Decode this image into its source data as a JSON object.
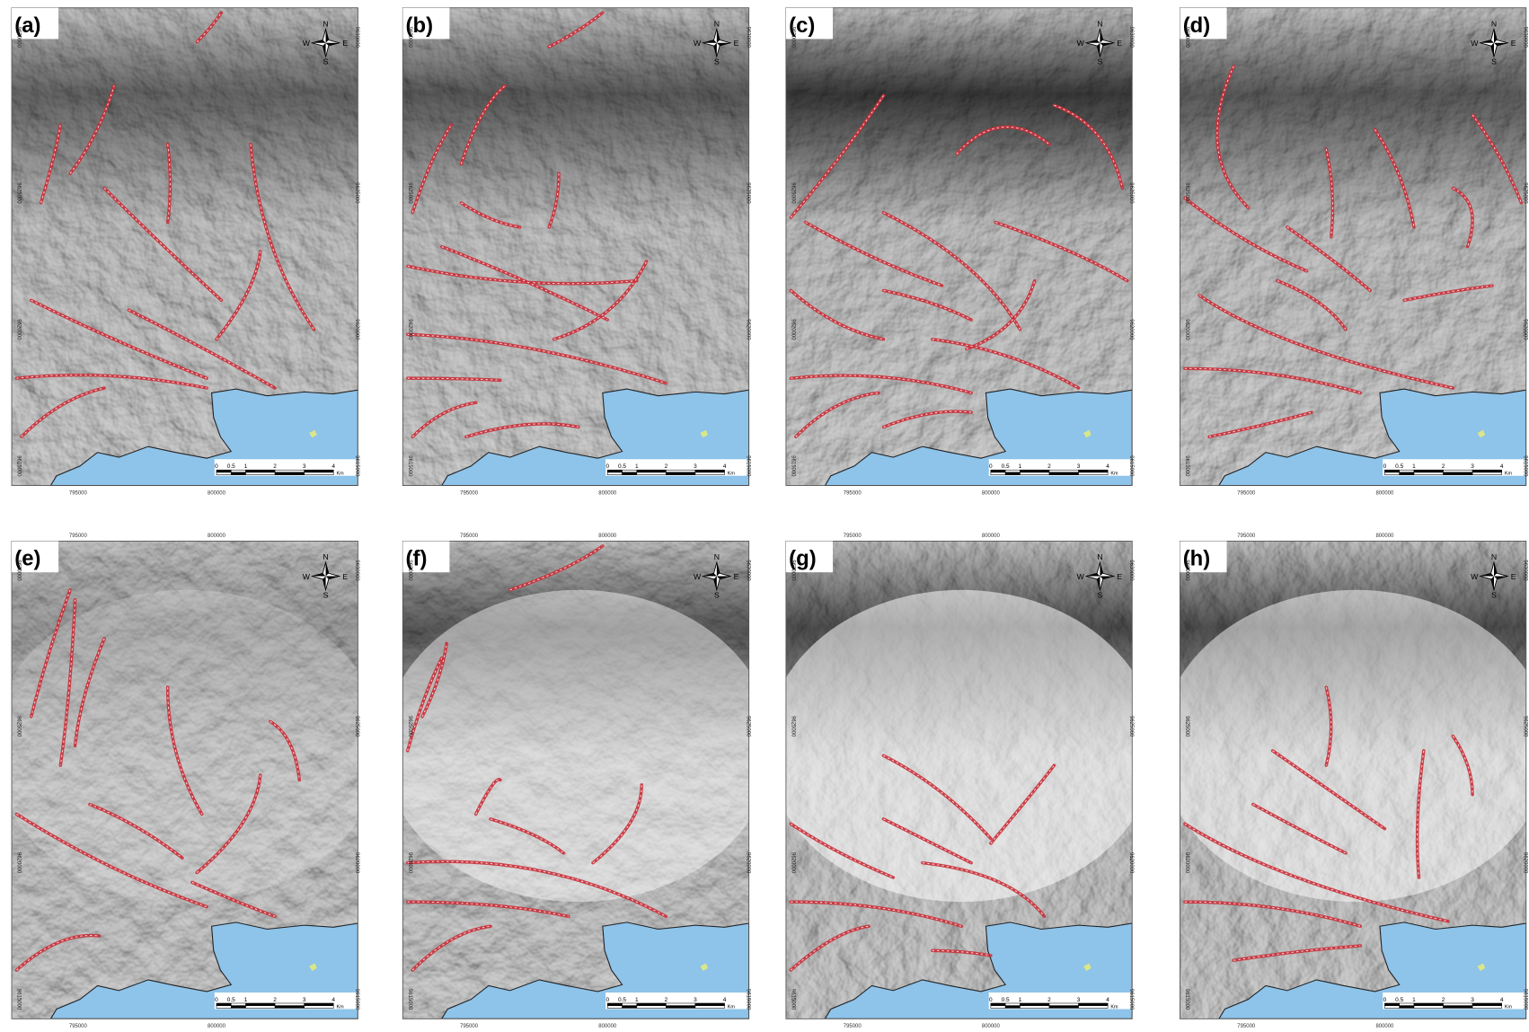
{
  "panels": [
    {
      "label": "(a)"
    },
    {
      "label": "(b)"
    },
    {
      "label": "(c)"
    },
    {
      "label": "(d)"
    },
    {
      "label": "(e)"
    },
    {
      "label": "(f)"
    },
    {
      "label": "(g)"
    },
    {
      "label": "(h)"
    }
  ],
  "easting": [
    "795000",
    "800000"
  ],
  "northing": [
    "9630000",
    "9625000",
    "9620000",
    "9615000"
  ],
  "scale_bar": {
    "labels": [
      "0",
      "0.5",
      "1",
      "2",
      "3",
      "4"
    ],
    "unit": "Km"
  },
  "compass": {
    "n": "N",
    "s": "S",
    "e": "E",
    "w": "W"
  }
}
